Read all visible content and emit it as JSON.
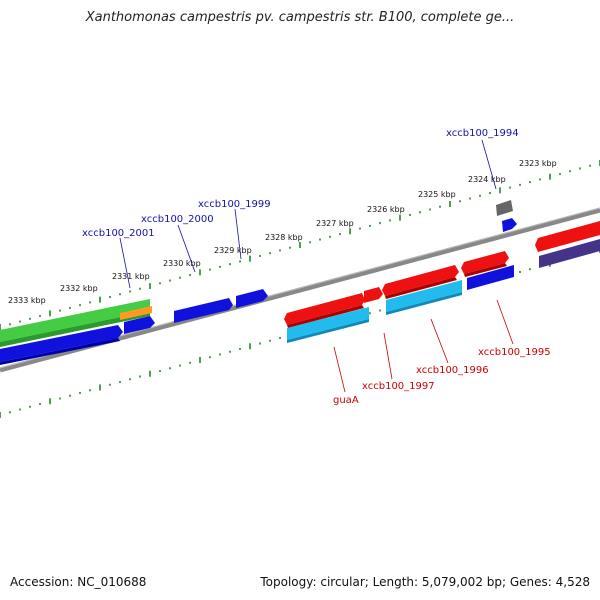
{
  "title": "Xanthomonas campestris pv. campestris str. B100, complete ge...",
  "footer": {
    "accession": "Accession: NC_010688",
    "summary": "Topology: circular; Length: 5,079,002 bp; Genes: 4,528"
  },
  "scale_labels": [
    "2333 kbp",
    "2332 kbp",
    "2331 kbp",
    "2330 kbp",
    "2329 kbp",
    "2328 kbp",
    "2327 kbp",
    "2326 kbp",
    "2325 kbp",
    "2324 kbp",
    "2323 kbp"
  ],
  "gene_labels": {
    "top": [
      "xccb100_2001",
      "xccb100_2000",
      "xccb100_1999",
      "xccb100_1994"
    ],
    "bottom": [
      "guaA",
      "xccb100_1997",
      "xccb100_1996",
      "xccb100_1995"
    ]
  },
  "colors": {
    "forward_cds": "#ee1111",
    "forward_cds_light": "#22bbee",
    "reverse_cds": "#1111dd",
    "other": "#44cc44",
    "rna": "#ff9922",
    "pseudo": "#555555",
    "dark_reverse": "#443388",
    "backbone": "#888888",
    "ticks": "#228822",
    "top_label": "#1111aa",
    "bottom_label": "#cc0000"
  }
}
